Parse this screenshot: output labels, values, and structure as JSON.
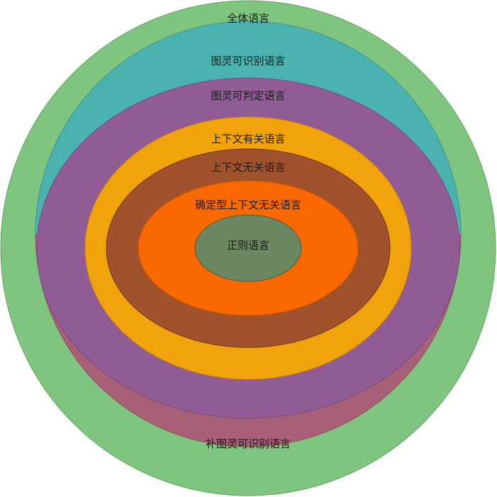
{
  "diagram": {
    "labels": {
      "all_languages": "全体语言",
      "turing_recognizable": "图灵可识别语言",
      "co_turing_recognizable": "补图灵可识别语言",
      "turing_decidable": "图灵可判定语言",
      "context_sensitive": "上下文有关语言",
      "context_free": "上下文无关语言",
      "deterministic_cf": "确定型上下文无关语言",
      "regular": "正则语言"
    },
    "colors": {
      "all_languages": "#7fc47f",
      "turing_recognizable": "#4ab3b0",
      "co_turing_recognizable": "#a76075",
      "turing_decidable": "#915b96",
      "context_sensitive": "#f0a30b",
      "context_free": "#a0522d",
      "deterministic_cf": "#fa6800",
      "regular": "#6d8763"
    }
  }
}
